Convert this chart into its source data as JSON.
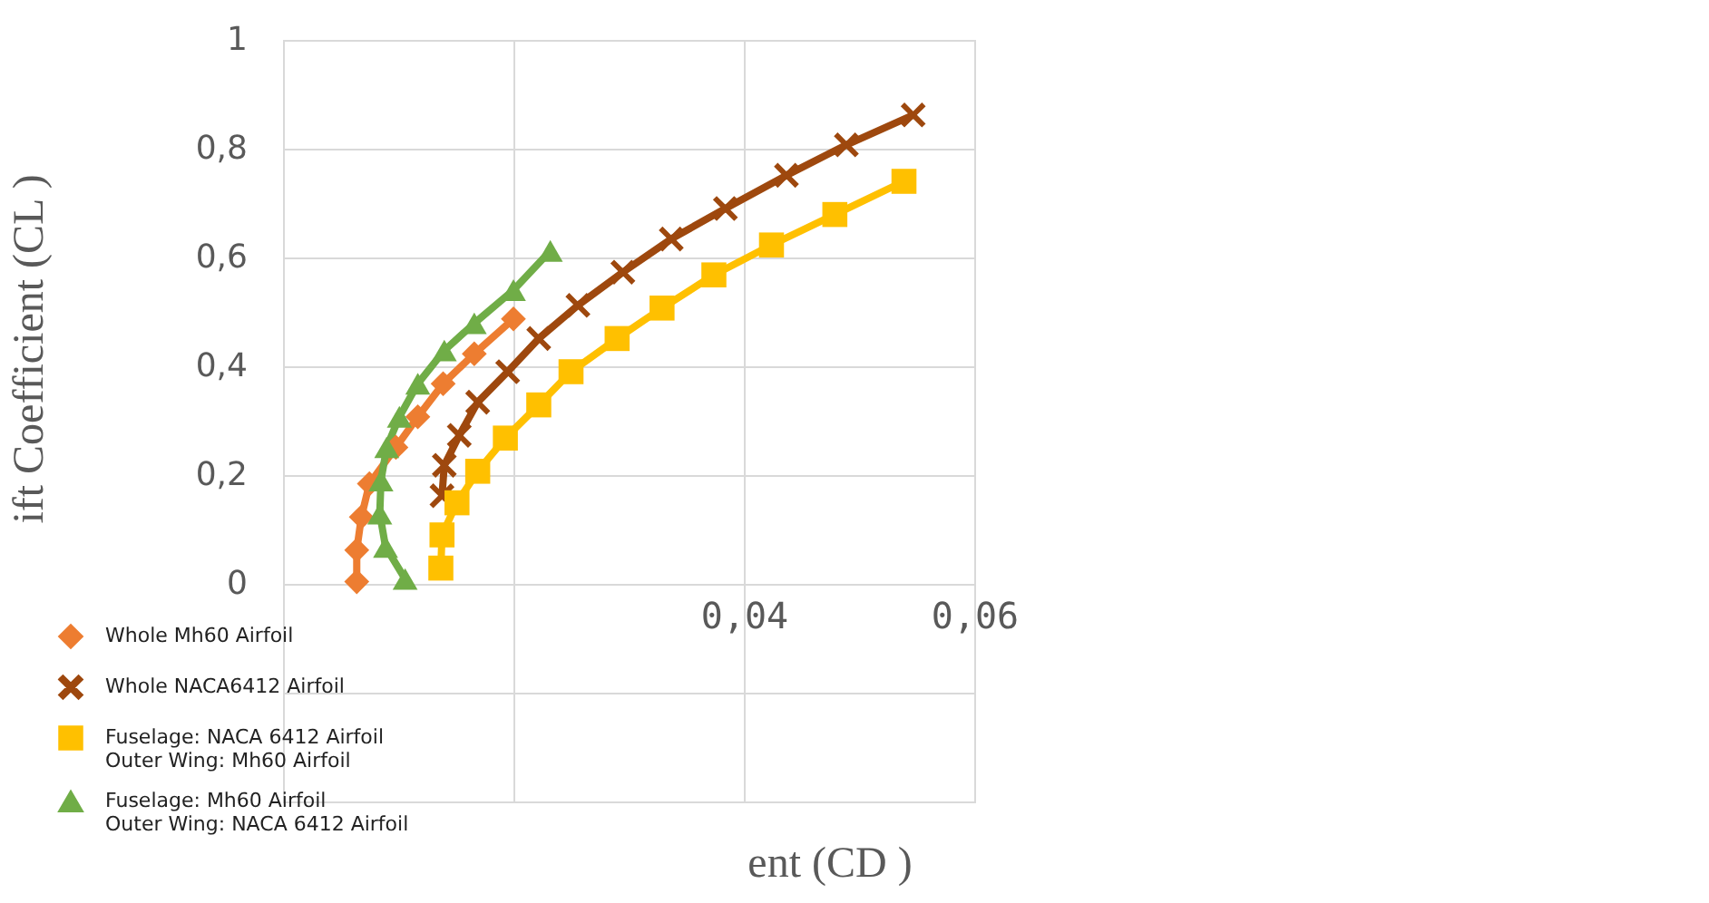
{
  "chart_data": {
    "type": "line",
    "xlabel": "ent (CD )",
    "ylabel": "ift Coefficient (CL )",
    "line_style": "solid",
    "xlim": [
      0,
      0.06
    ],
    "ylim": [
      -0.4,
      1
    ],
    "xticks": [
      {
        "value": 0,
        "label": null
      },
      {
        "value": 0.02,
        "label": null
      },
      {
        "value": 0.04,
        "label": "0,04"
      },
      {
        "value": 0.06,
        "label": "0,06"
      }
    ],
    "yticks": [
      {
        "value": -0.4,
        "label": null
      },
      {
        "value": -0.2,
        "label": null
      },
      0,
      {
        "value": 0.2,
        "label": "0,2"
      },
      {
        "value": 0.4,
        "label": "0,4"
      },
      {
        "value": 0.6,
        "label": "0,6"
      },
      {
        "value": 0.8,
        "label": "0,8"
      },
      1
    ],
    "grid": true,
    "legend": "bottom left",
    "series": [
      {
        "name": "Whole Mh60 Airfoil",
        "color": "#ed7d31",
        "marker": "diamond",
        "x": [
          0.0064,
          0.0064,
          0.0068,
          0.0075,
          0.0098,
          0.0117,
          0.0139,
          0.0166,
          0.02
        ],
        "values": [
          0.004,
          0.062,
          0.123,
          0.184,
          0.251,
          0.307,
          0.368,
          0.423,
          0.487
        ]
      },
      {
        "name": "Whole NACA6412 Airfoil",
        "color": "#9e480e",
        "marker": "cross",
        "x": [
          0.0138,
          0.014,
          0.0153,
          0.0169,
          0.0195,
          0.0222,
          0.0256,
          0.0295,
          0.0337,
          0.0384,
          0.0437,
          0.0489,
          0.0547
        ],
        "values": [
          0.162,
          0.218,
          0.273,
          0.334,
          0.39,
          0.451,
          0.512,
          0.573,
          0.634,
          0.69,
          0.751,
          0.807,
          0.862
        ]
      },
      {
        "name": "Fuselage: NACA 6412 Airfoil\nOuter Wing: Mh60 Airfoil",
        "color": "#ffc000",
        "marker": "square",
        "x": [
          0.0137,
          0.0138,
          0.0151,
          0.0169,
          0.0193,
          0.0222,
          0.025,
          0.029,
          0.0329,
          0.0374,
          0.0424,
          0.0479,
          0.0539
        ],
        "values": [
          0.029,
          0.09,
          0.149,
          0.207,
          0.268,
          0.329,
          0.39,
          0.451,
          0.507,
          0.568,
          0.623,
          0.679,
          0.74
        ]
      },
      {
        "name": "Fuselage: Mh60 Airfoil\nOuter Wing: NACA 6412 Airfoil",
        "color": "#70ad47",
        "marker": "triangle",
        "x": [
          0.0106,
          0.0089,
          0.0084,
          0.0085,
          0.009,
          0.0101,
          0.0117,
          0.014,
          0.0166,
          0.02,
          0.0232
        ],
        "values": [
          0.009,
          0.068,
          0.129,
          0.19,
          0.251,
          0.307,
          0.368,
          0.429,
          0.479,
          0.54,
          0.612
        ]
      }
    ]
  }
}
